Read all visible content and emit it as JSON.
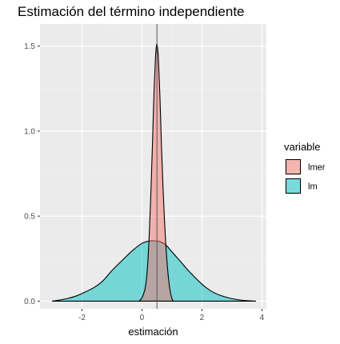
{
  "chart_data": {
    "type": "area",
    "title": "Estimación del término independiente",
    "xlabel": "estimación",
    "ylabel": "",
    "xlim": [
      -3.4,
      4.15
    ],
    "ylim": [
      -0.045,
      1.63
    ],
    "x_ticks": [
      -2,
      0,
      2,
      4
    ],
    "x_tick_labels": [
      "-2",
      "0",
      "2",
      "4"
    ],
    "y_ticks": [
      0.0,
      0.5,
      1.0,
      1.5
    ],
    "y_tick_labels": [
      "0.0",
      "0.5",
      "1.0",
      "1.5"
    ],
    "grid": true,
    "legend": {
      "title": "variable",
      "position": "right"
    },
    "vline": 0.5,
    "series": [
      {
        "name": "lmer",
        "color": "#F8766D",
        "x": [
          -0.1,
          0.0,
          0.1,
          0.15,
          0.2,
          0.25,
          0.3,
          0.35,
          0.4,
          0.45,
          0.48,
          0.5,
          0.52,
          0.55,
          0.6,
          0.65,
          0.7,
          0.75,
          0.8,
          0.85,
          0.9,
          0.95,
          1.0,
          1.05
        ],
        "y": [
          0.0,
          0.02,
          0.07,
          0.13,
          0.24,
          0.42,
          0.65,
          0.92,
          1.22,
          1.43,
          1.5,
          1.51,
          1.49,
          1.42,
          1.2,
          0.92,
          0.68,
          0.48,
          0.32,
          0.2,
          0.11,
          0.05,
          0.015,
          0.0
        ]
      },
      {
        "name": "lm",
        "color": "#00BFC4",
        "x": [
          -3.0,
          -2.8,
          -2.5,
          -2.2,
          -2.0,
          -1.6,
          -1.3,
          -1.0,
          -0.6,
          -0.3,
          0.0,
          0.2,
          0.4,
          0.6,
          0.8,
          1.0,
          1.3,
          1.6,
          2.0,
          2.3,
          2.6,
          3.0,
          3.4,
          3.8
        ],
        "y": [
          0.0,
          0.005,
          0.015,
          0.03,
          0.045,
          0.08,
          0.12,
          0.18,
          0.25,
          0.3,
          0.34,
          0.352,
          0.355,
          0.35,
          0.33,
          0.29,
          0.23,
          0.17,
          0.1,
          0.06,
          0.035,
          0.015,
          0.004,
          0.0
        ]
      }
    ]
  }
}
